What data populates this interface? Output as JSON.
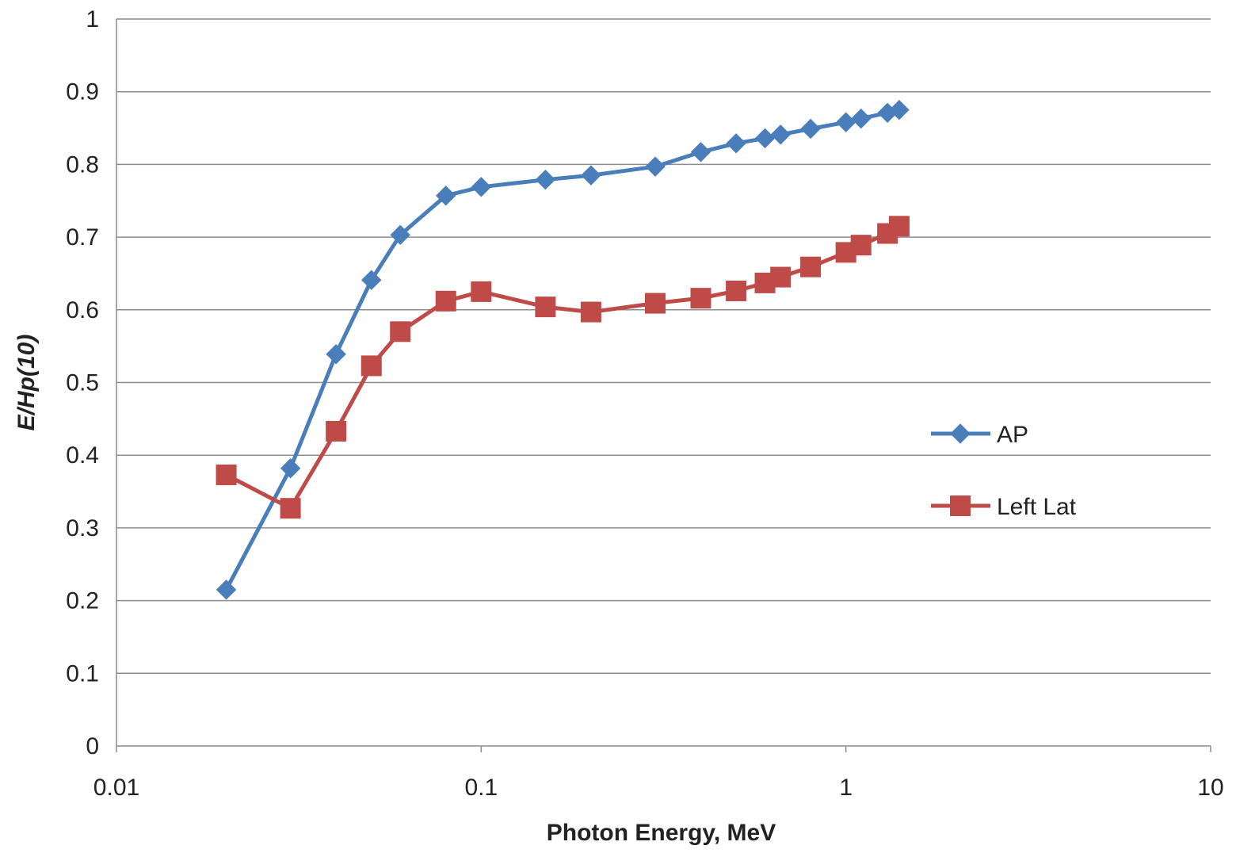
{
  "chart_data": {
    "type": "line",
    "xlabel": "Photon Energy, MeV",
    "ylabel": "E/Hp(10)",
    "x_scale": "log",
    "xlim": [
      0.01,
      10
    ],
    "ylim": [
      0,
      1
    ],
    "x_ticks": [
      "0.01",
      "0.1",
      "1",
      "10"
    ],
    "y_ticks": [
      "0",
      "0.1",
      "0.2",
      "0.3",
      "0.4",
      "0.5",
      "0.6",
      "0.7",
      "0.8",
      "0.9",
      "1"
    ],
    "grid": "horizontal",
    "legend_position": "right",
    "series": [
      {
        "name": "AP",
        "color": "#4a7ebb",
        "marker": "diamond",
        "x": [
          0.02,
          0.03,
          0.04,
          0.05,
          0.06,
          0.08,
          0.1,
          0.15,
          0.2,
          0.3,
          0.4,
          0.5,
          0.6,
          0.662,
          0.8,
          1.0,
          1.1,
          1.3,
          1.4
        ],
        "y": [
          0.215,
          0.382,
          0.539,
          0.641,
          0.703,
          0.757,
          0.769,
          0.779,
          0.785,
          0.797,
          0.817,
          0.829,
          0.836,
          0.841,
          0.849,
          0.858,
          0.863,
          0.871,
          0.875
        ]
      },
      {
        "name": "Left Lat",
        "color": "#be4b48",
        "marker": "square",
        "x": [
          0.02,
          0.03,
          0.04,
          0.05,
          0.06,
          0.08,
          0.1,
          0.15,
          0.2,
          0.3,
          0.4,
          0.5,
          0.6,
          0.662,
          0.8,
          1.0,
          1.1,
          1.3,
          1.4
        ],
        "y": [
          0.373,
          0.327,
          0.433,
          0.523,
          0.57,
          0.612,
          0.625,
          0.604,
          0.597,
          0.609,
          0.616,
          0.626,
          0.637,
          0.645,
          0.659,
          0.679,
          0.689,
          0.705,
          0.715
        ]
      }
    ]
  }
}
